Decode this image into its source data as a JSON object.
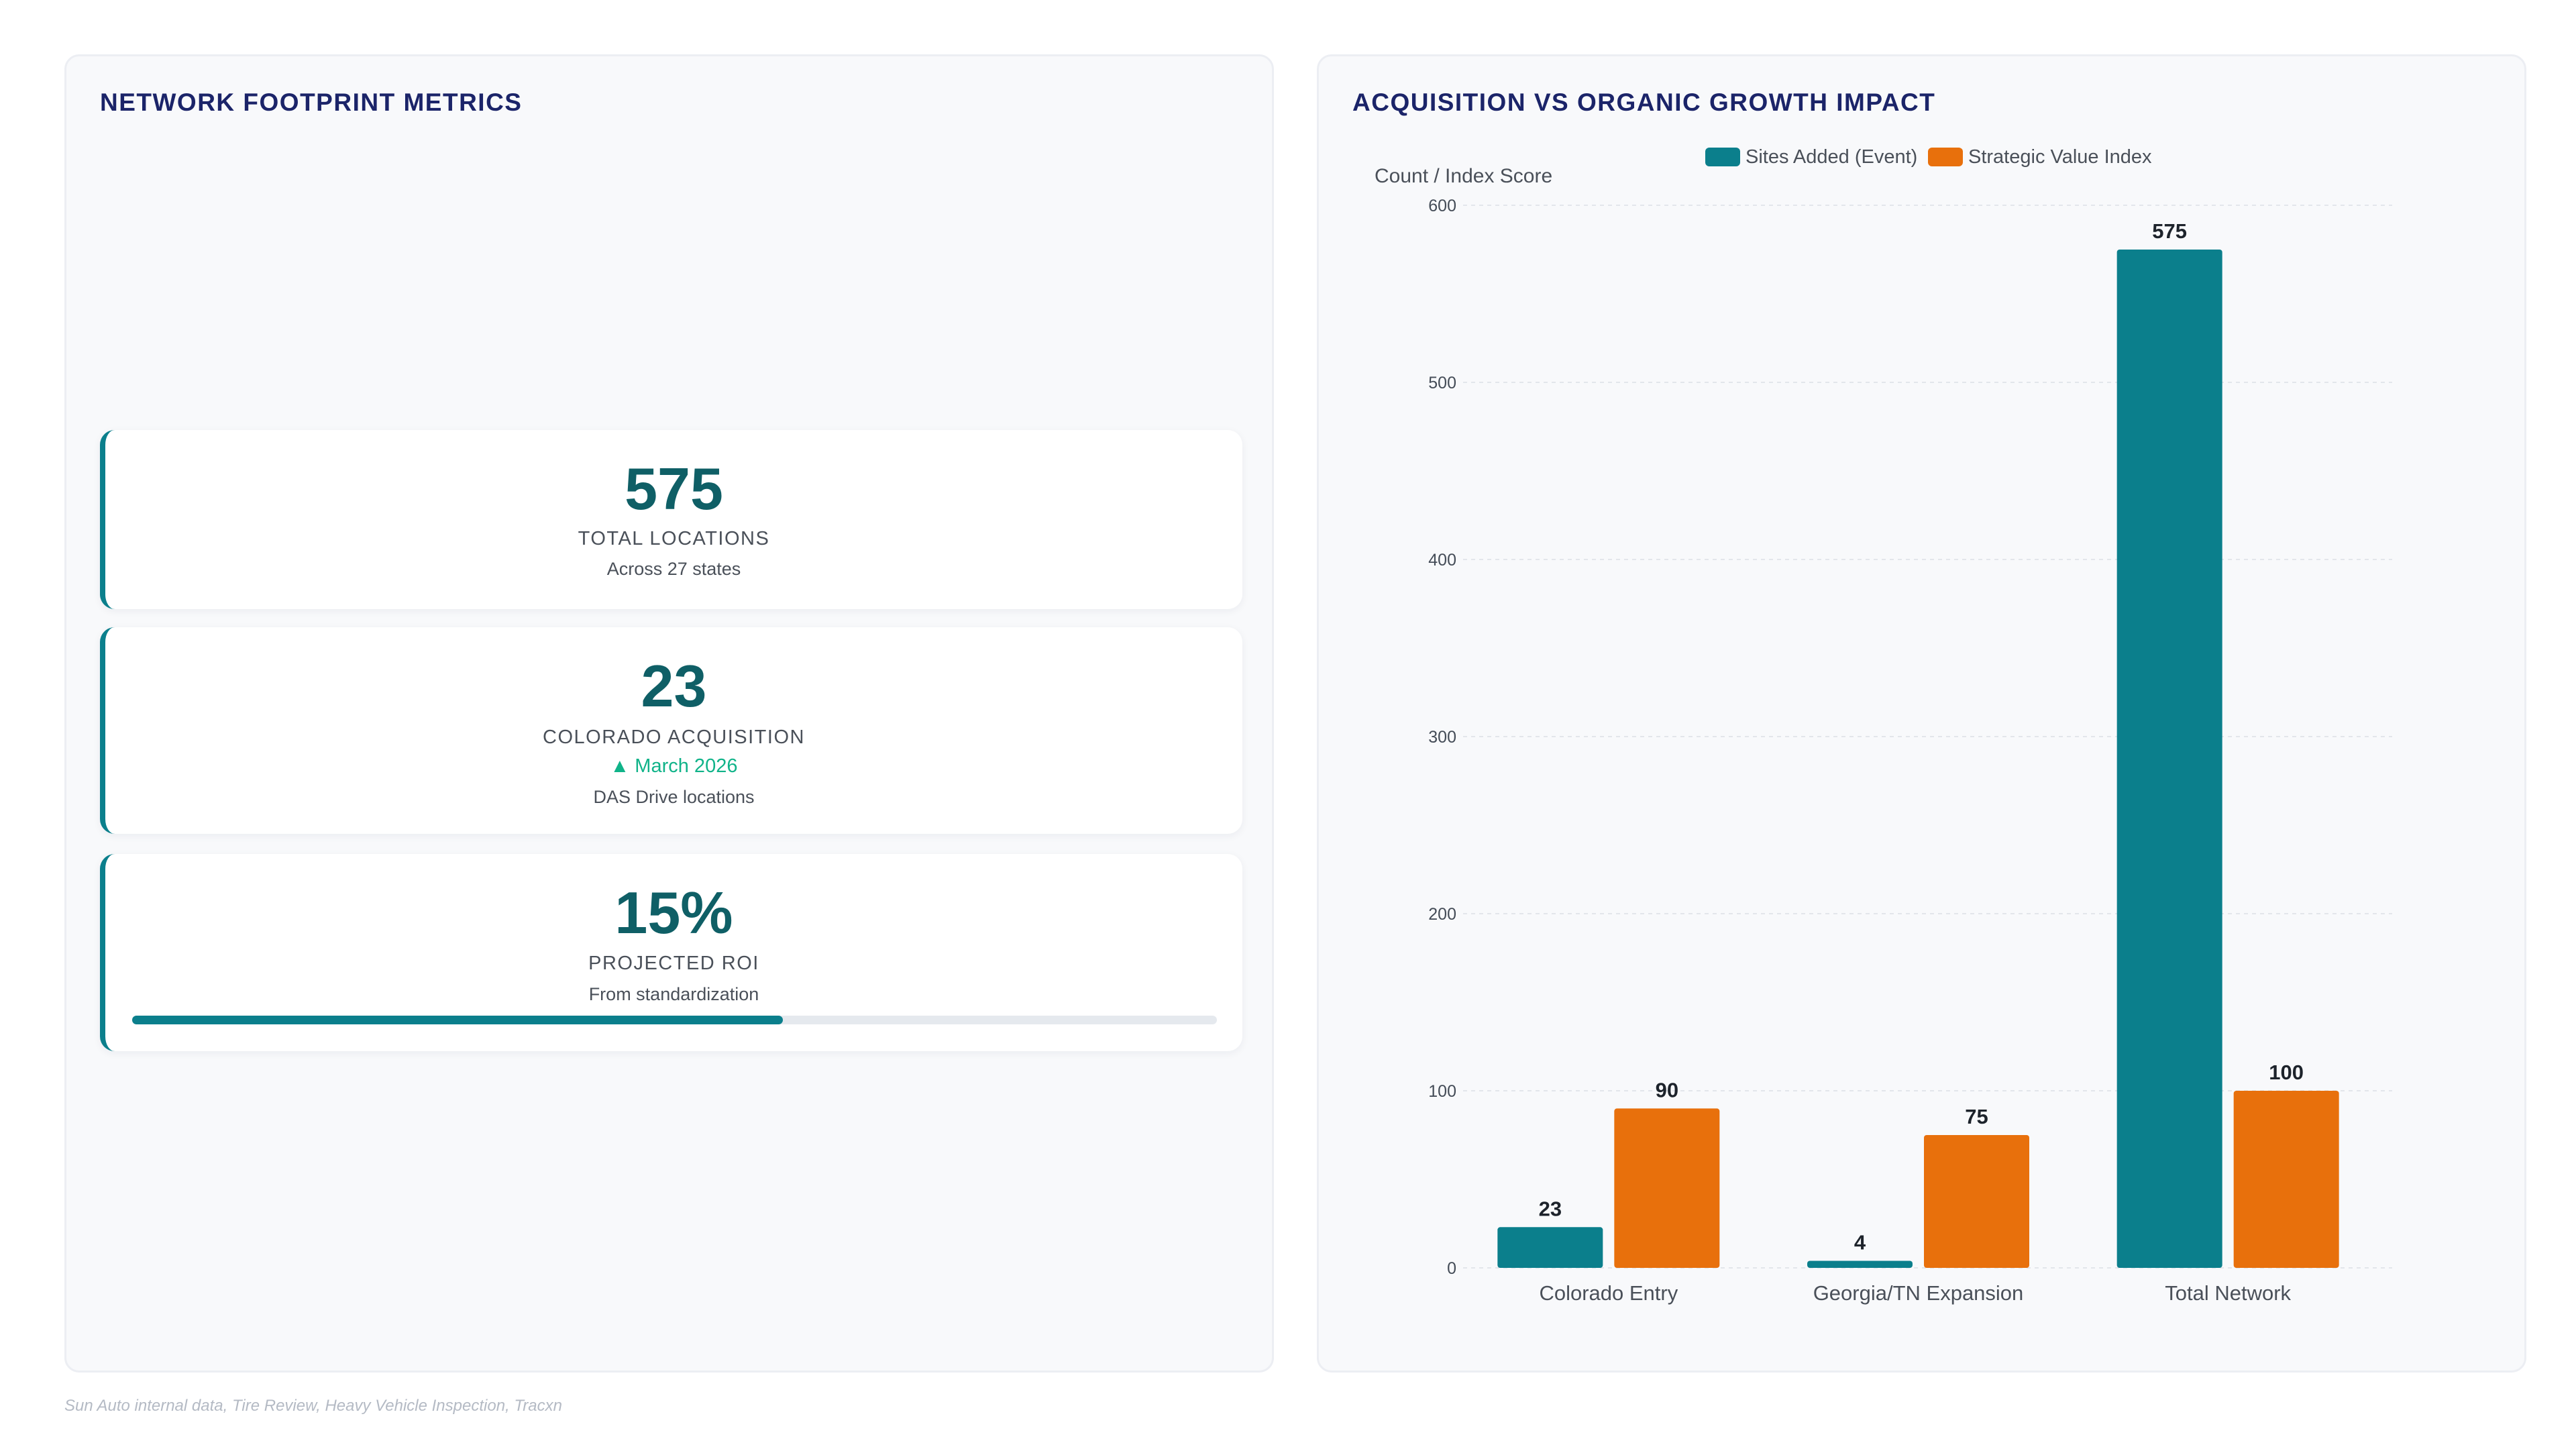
{
  "left_panel": {
    "title": "NETWORK FOOTPRINT METRICS",
    "cards": [
      {
        "value": "575",
        "label": "TOTAL LOCATIONS",
        "sub": "Across 27 states"
      },
      {
        "value": "23",
        "label": "COLORADO ACQUISITION",
        "trend": "▲ March 2026",
        "sub": "DAS Drive locations"
      },
      {
        "value": "15%",
        "label": "PROJECTED ROI",
        "sub": "From standardization",
        "progress": 0.6
      }
    ]
  },
  "right_panel": {
    "title": "ACQUISITION VS ORGANIC GROWTH IMPACT"
  },
  "chart_data": {
    "type": "bar",
    "title": "ACQUISITION VS ORGANIC GROWTH IMPACT",
    "xlabel": "",
    "ylabel": "Count / Index Score",
    "categories": [
      "Colorado Entry",
      "Georgia/TN Expansion",
      "Total Network"
    ],
    "series": [
      {
        "name": "Sites Added (Event)",
        "values": [
          23,
          4,
          575
        ],
        "color": "#0b7f8c"
      },
      {
        "name": "Strategic Value Index",
        "values": [
          90,
          75,
          100
        ],
        "color": "#e8700c"
      }
    ],
    "ylim": [
      0,
      600
    ],
    "yticks": [
      0,
      100,
      200,
      300,
      400,
      500,
      600
    ],
    "grid": true,
    "legend": "top-center"
  },
  "footer": {
    "source": "Sun Auto internal data, Tire Review, Heavy Vehicle Inspection, Tracxn"
  }
}
